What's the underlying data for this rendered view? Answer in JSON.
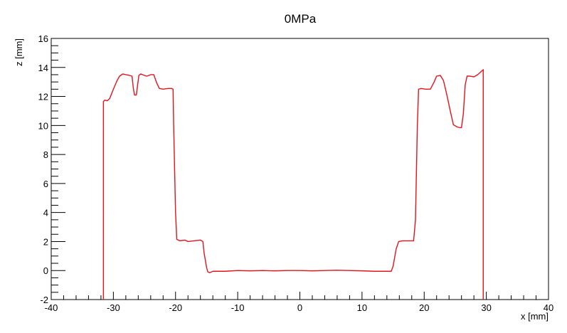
{
  "chart_data": {
    "type": "line",
    "title": "0MPa",
    "xlabel": "x [mm]",
    "ylabel": "z [mm]",
    "xlim": [
      -40,
      40
    ],
    "ylim": [
      -2,
      16
    ],
    "x_major_ticks": [
      -40,
      -30,
      -20,
      -10,
      0,
      10,
      20,
      30,
      40
    ],
    "y_major_ticks": [
      -2,
      0,
      2,
      4,
      6,
      8,
      10,
      12,
      14,
      16
    ],
    "x_tick_labels": [
      "-40",
      "-30",
      "-20",
      "-10",
      "0",
      "10",
      "20",
      "30",
      "40"
    ],
    "y_tick_labels": [
      "-2",
      "0",
      "2",
      "4",
      "6",
      "8",
      "10",
      "12",
      "14",
      "16"
    ],
    "grid": false,
    "legend": "none",
    "line_color": "#e0141e",
    "frame_color": "#000000",
    "series": [
      {
        "points": [
          [
            -31.6,
            -2
          ],
          [
            -31.6,
            11.65
          ],
          [
            -31.4,
            11.75
          ],
          [
            -31.0,
            11.7
          ],
          [
            -30.6,
            11.85
          ],
          [
            -30.0,
            12.5
          ],
          [
            -29.4,
            13.1
          ],
          [
            -29.0,
            13.4
          ],
          [
            -28.5,
            13.55
          ],
          [
            -28.0,
            13.5
          ],
          [
            -27.4,
            13.45
          ],
          [
            -27.0,
            13.4
          ],
          [
            -26.8,
            12.6
          ],
          [
            -26.6,
            12.1
          ],
          [
            -26.3,
            12.1
          ],
          [
            -26.1,
            12.8
          ],
          [
            -25.9,
            13.45
          ],
          [
            -25.6,
            13.55
          ],
          [
            -25.0,
            13.45
          ],
          [
            -24.6,
            13.4
          ],
          [
            -24.0,
            13.5
          ],
          [
            -23.5,
            13.5
          ],
          [
            -23.0,
            12.9
          ],
          [
            -22.6,
            12.55
          ],
          [
            -22.0,
            12.5
          ],
          [
            -21.2,
            12.55
          ],
          [
            -20.6,
            12.55
          ],
          [
            -20.4,
            12.5
          ],
          [
            -20.3,
            10.0
          ],
          [
            -20.0,
            4.0
          ],
          [
            -19.8,
            2.15
          ],
          [
            -19.3,
            2.05
          ],
          [
            -18.5,
            2.1
          ],
          [
            -18.0,
            2.0
          ],
          [
            -17.0,
            2.05
          ],
          [
            -16.0,
            2.1
          ],
          [
            -15.6,
            2.0
          ],
          [
            -15.4,
            1.2
          ],
          [
            -15.0,
            0.2
          ],
          [
            -14.8,
            -0.1
          ],
          [
            -14.5,
            -0.15
          ],
          [
            -14.0,
            -0.05
          ],
          [
            -13.0,
            -0.05
          ],
          [
            -12.0,
            -0.05
          ],
          [
            -10.0,
            0.0
          ],
          [
            -8.0,
            -0.02
          ],
          [
            -6.0,
            0.0
          ],
          [
            -4.0,
            -0.02
          ],
          [
            -2.0,
            0.0
          ],
          [
            0.0,
            0.0
          ],
          [
            2.0,
            -0.02
          ],
          [
            4.0,
            0.0
          ],
          [
            6.0,
            0.02
          ],
          [
            8.0,
            0.0
          ],
          [
            10.0,
            -0.02
          ],
          [
            12.0,
            -0.05
          ],
          [
            14.0,
            -0.05
          ],
          [
            14.7,
            -0.05
          ],
          [
            15.0,
            0.3
          ],
          [
            15.5,
            1.5
          ],
          [
            15.9,
            2.0
          ],
          [
            16.5,
            2.05
          ],
          [
            17.5,
            2.05
          ],
          [
            18.3,
            2.05
          ],
          [
            18.6,
            3.5
          ],
          [
            18.9,
            10.0
          ],
          [
            19.1,
            12.5
          ],
          [
            19.5,
            12.55
          ],
          [
            20.2,
            12.5
          ],
          [
            21.0,
            12.5
          ],
          [
            21.6,
            13.0
          ],
          [
            22.0,
            13.4
          ],
          [
            22.6,
            13.45
          ],
          [
            23.1,
            13.1
          ],
          [
            23.6,
            12.2
          ],
          [
            24.2,
            11.0
          ],
          [
            24.7,
            10.05
          ],
          [
            25.3,
            9.9
          ],
          [
            25.7,
            9.85
          ],
          [
            26.0,
            9.85
          ],
          [
            26.3,
            10.8
          ],
          [
            26.6,
            12.8
          ],
          [
            26.9,
            13.4
          ],
          [
            27.4,
            13.4
          ],
          [
            28.0,
            13.35
          ],
          [
            28.6,
            13.5
          ],
          [
            29.0,
            13.65
          ],
          [
            29.5,
            13.85
          ],
          [
            29.5,
            -2
          ]
        ]
      }
    ]
  }
}
